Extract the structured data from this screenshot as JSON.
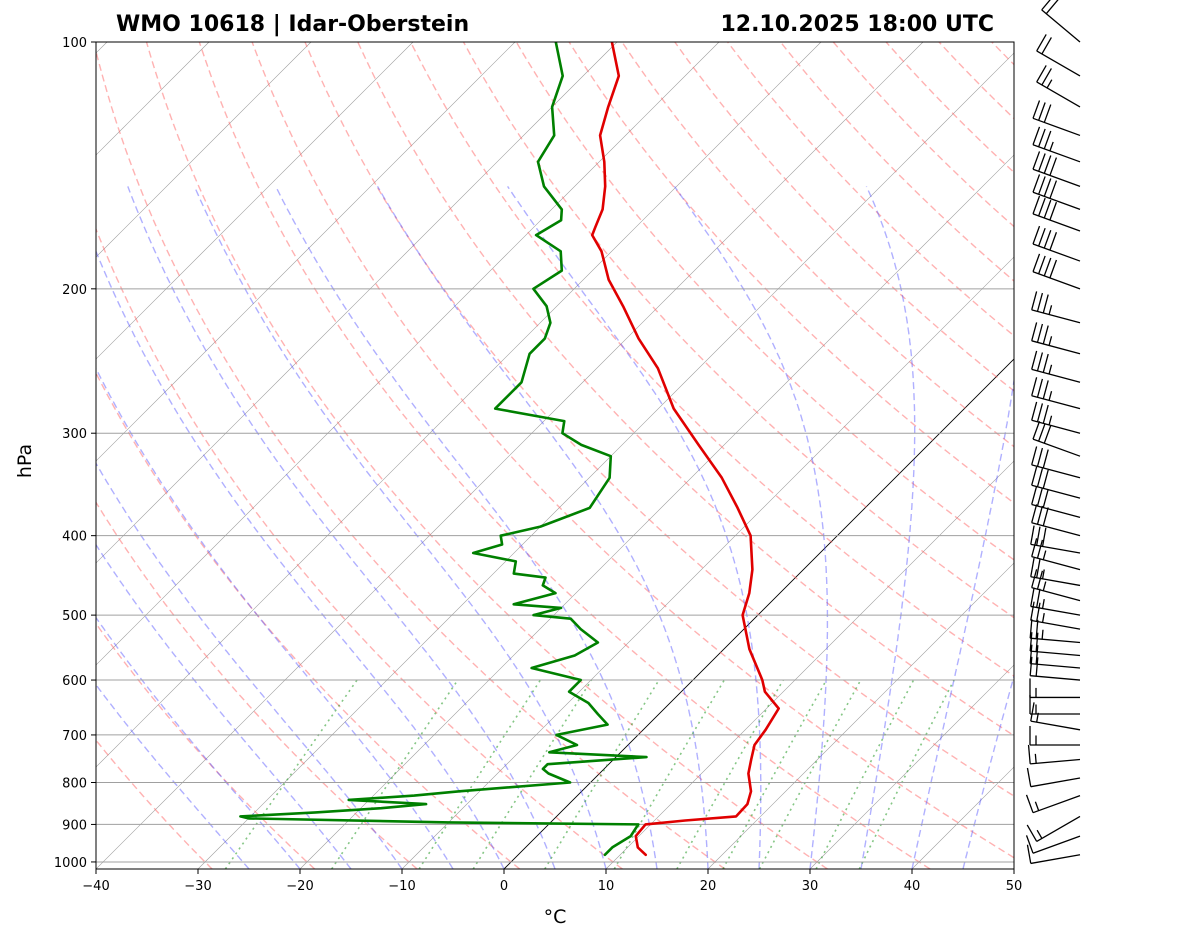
{
  "title_left": "WMO 10618 | Idar-Oberstein",
  "title_right": "12.10.2025 18:00 UTC",
  "chart_data": {
    "type": "line",
    "subtype": "skew-t log-p",
    "xlabel": "°C",
    "ylabel": "hPa",
    "xlim": [
      -40,
      50
    ],
    "ylim": [
      1020,
      100
    ],
    "x_ticks": [
      "−40",
      "−30",
      "−20",
      "−10",
      "0",
      "10",
      "20",
      "30",
      "40",
      "50"
    ],
    "y_ticks": [
      "100",
      "200",
      "300",
      "400",
      "500",
      "600",
      "700",
      "800",
      "900",
      "1000"
    ],
    "grid": true,
    "series": [
      {
        "role": "temperature",
        "color": "#e00000",
        "points": [
          [
            980,
            12.5
          ],
          [
            960,
            11.0
          ],
          [
            930,
            9.7
          ],
          [
            900,
            9.5
          ],
          [
            890,
            13.0
          ],
          [
            880,
            17.6
          ],
          [
            850,
            17.5
          ],
          [
            820,
            16.6
          ],
          [
            780,
            14.6
          ],
          [
            750,
            13.5
          ],
          [
            720,
            12.4
          ],
          [
            690,
            12.0
          ],
          [
            650,
            11.2
          ],
          [
            620,
            8.2
          ],
          [
            600,
            6.8
          ],
          [
            550,
            2.5
          ],
          [
            500,
            -1.5
          ],
          [
            470,
            -3.0
          ],
          [
            440,
            -5.0
          ],
          [
            400,
            -8.5
          ],
          [
            370,
            -12.5
          ],
          [
            340,
            -17.0
          ],
          [
            310,
            -22.5
          ],
          [
            280,
            -28.5
          ],
          [
            250,
            -34.0
          ],
          [
            230,
            -38.8
          ],
          [
            210,
            -43.5
          ],
          [
            195,
            -47.5
          ],
          [
            180,
            -51.0
          ],
          [
            172,
            -53.5
          ],
          [
            168,
            -54.0
          ],
          [
            160,
            -55.0
          ],
          [
            150,
            -57.0
          ],
          [
            140,
            -59.5
          ],
          [
            130,
            -62.5
          ],
          [
            120,
            -64.5
          ],
          [
            110,
            -66.5
          ],
          [
            100,
            -70.5
          ]
        ]
      },
      {
        "role": "dewpoint",
        "color": "#008000",
        "points": [
          [
            980,
            8.5
          ],
          [
            960,
            8.5
          ],
          [
            930,
            9.2
          ],
          [
            900,
            8.8
          ],
          [
            895,
            -10
          ],
          [
            885,
            -30
          ],
          [
            880,
            -31
          ],
          [
            870,
            -24
          ],
          [
            860,
            -18
          ],
          [
            850,
            -14
          ],
          [
            840,
            -22
          ],
          [
            830,
            -16
          ],
          [
            820,
            -12
          ],
          [
            800,
            -2.0
          ],
          [
            780,
            -5
          ],
          [
            770,
            -6
          ],
          [
            760,
            -6
          ],
          [
            745,
            3.0
          ],
          [
            735,
            -7
          ],
          [
            720,
            -5
          ],
          [
            700,
            -8
          ],
          [
            680,
            -4
          ],
          [
            660,
            -6
          ],
          [
            640,
            -8
          ],
          [
            620,
            -11
          ],
          [
            600,
            -11
          ],
          [
            580,
            -17
          ],
          [
            560,
            -14
          ],
          [
            540,
            -13
          ],
          [
            520,
            -16
          ],
          [
            505,
            -18
          ],
          [
            500,
            -22
          ],
          [
            490,
            -20
          ],
          [
            485,
            -25
          ],
          [
            470,
            -22
          ],
          [
            460,
            -24
          ],
          [
            450,
            -24.5
          ],
          [
            445,
            -28
          ],
          [
            430,
            -29
          ],
          [
            420,
            -34
          ],
          [
            410,
            -32
          ],
          [
            400,
            -33
          ],
          [
            390,
            -30
          ],
          [
            370,
            -27
          ],
          [
            340,
            -28
          ],
          [
            320,
            -30
          ],
          [
            310,
            -34
          ],
          [
            300,
            -37
          ],
          [
            290,
            -38
          ],
          [
            280,
            -46
          ],
          [
            260,
            -46
          ],
          [
            240,
            -48
          ],
          [
            230,
            -48
          ],
          [
            220,
            -49
          ],
          [
            210,
            -51
          ],
          [
            200,
            -54
          ],
          [
            190,
            -53
          ],
          [
            180,
            -55
          ],
          [
            172,
            -59
          ],
          [
            165,
            -58
          ],
          [
            160,
            -59
          ],
          [
            150,
            -63
          ],
          [
            140,
            -66
          ],
          [
            130,
            -67
          ],
          [
            120,
            -70
          ],
          [
            110,
            -72
          ],
          [
            100,
            -76
          ]
        ]
      }
    ],
    "reference_lines": {
      "dry_adiabats": "red dashed",
      "moist_adiabats": "blue dashed",
      "mixing_ratio": "green dotted",
      "isotherms": "gray solid",
      "zero_isotherm": "black solid"
    },
    "wind_barbs": {
      "position": "right",
      "color": "#000000",
      "barbs": [
        [
          980,
          260,
          10
        ],
        [
          930,
          250,
          10
        ],
        [
          880,
          240,
          15
        ],
        [
          830,
          250,
          15
        ],
        [
          790,
          260,
          10
        ],
        [
          750,
          265,
          15
        ],
        [
          720,
          270,
          15
        ],
        [
          690,
          280,
          15
        ],
        [
          660,
          270,
          15
        ],
        [
          630,
          270,
          15
        ],
        [
          600,
          275,
          20
        ],
        [
          580,
          275,
          20
        ],
        [
          560,
          275,
          20
        ],
        [
          540,
          275,
          25
        ],
        [
          520,
          280,
          25
        ],
        [
          500,
          280,
          25
        ],
        [
          480,
          285,
          25
        ],
        [
          460,
          280,
          25
        ],
        [
          440,
          285,
          25
        ],
        [
          420,
          280,
          30
        ],
        [
          400,
          285,
          30
        ],
        [
          380,
          285,
          30
        ],
        [
          360,
          285,
          30
        ],
        [
          340,
          285,
          30
        ],
        [
          320,
          290,
          30
        ],
        [
          300,
          285,
          35
        ],
        [
          280,
          285,
          35
        ],
        [
          260,
          285,
          35
        ],
        [
          240,
          285,
          35
        ],
        [
          220,
          285,
          35
        ],
        [
          200,
          290,
          40
        ],
        [
          185,
          290,
          40
        ],
        [
          170,
          290,
          40
        ],
        [
          160,
          290,
          40
        ],
        [
          150,
          290,
          40
        ],
        [
          140,
          290,
          35
        ],
        [
          130,
          290,
          30
        ],
        [
          120,
          300,
          25
        ],
        [
          110,
          300,
          20
        ],
        [
          100,
          310,
          20
        ]
      ]
    }
  }
}
